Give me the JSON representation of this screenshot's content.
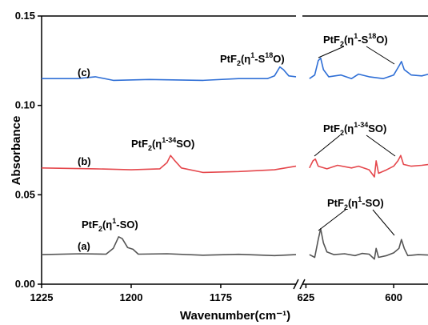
{
  "chart_data": {
    "type": "line",
    "xlabel": "Wavenumber(cm⁻¹)",
    "ylabel": "Absorbance",
    "x_axis": {
      "broken": true,
      "segments": [
        {
          "range": [
            1225,
            1154
          ],
          "ticks": [
            1225,
            1200,
            1175
          ]
        },
        {
          "range": [
            626,
            590
          ],
          "ticks": [
            625,
            600
          ]
        }
      ]
    },
    "ylim": [
      0.0,
      0.15
    ],
    "y_ticks": [
      "0.00",
      "0.05",
      "0.10",
      "0.15"
    ],
    "grid": false,
    "series": [
      {
        "name": "(a)",
        "color": "#555555",
        "segment1": [
          [
            1225,
            0.0165
          ],
          [
            1214,
            0.017
          ],
          [
            1207,
            0.0168
          ],
          [
            1205,
            0.02
          ],
          [
            1203.5,
            0.0265
          ],
          [
            1202.5,
            0.0255
          ],
          [
            1201,
            0.0205
          ],
          [
            1199.5,
            0.0195
          ],
          [
            1198,
            0.0168
          ],
          [
            1190,
            0.017
          ],
          [
            1180,
            0.0162
          ],
          [
            1170,
            0.0167
          ],
          [
            1160,
            0.016
          ],
          [
            1154,
            0.0165
          ]
        ],
        "segment2": [
          [
            624,
            0.0165
          ],
          [
            622.5,
            0.015
          ],
          [
            621.5,
            0.025
          ],
          [
            620.8,
            0.031
          ],
          [
            620,
            0.023
          ],
          [
            619,
            0.018
          ],
          [
            617,
            0.0165
          ],
          [
            614,
            0.017
          ],
          [
            611,
            0.016
          ],
          [
            609,
            0.0172
          ],
          [
            607,
            0.0168
          ],
          [
            605.5,
            0.014
          ],
          [
            605,
            0.02
          ],
          [
            604.3,
            0.015
          ],
          [
            602,
            0.016
          ],
          [
            600,
            0.0175
          ],
          [
            598.5,
            0.02
          ],
          [
            597.8,
            0.025
          ],
          [
            597,
            0.02
          ],
          [
            596,
            0.016
          ],
          [
            593,
            0.0165
          ],
          [
            590,
            0.0163
          ]
        ]
      },
      {
        "name": "(b)",
        "color": "#e5484d",
        "segment1": [
          [
            1225,
            0.065
          ],
          [
            1210,
            0.0645
          ],
          [
            1200,
            0.064
          ],
          [
            1192,
            0.0645
          ],
          [
            1190,
            0.068
          ],
          [
            1189,
            0.072
          ],
          [
            1188,
            0.0695
          ],
          [
            1186,
            0.065
          ],
          [
            1180,
            0.0625
          ],
          [
            1170,
            0.063
          ],
          [
            1160,
            0.064
          ],
          [
            1154,
            0.066
          ]
        ],
        "segment2": [
          [
            624,
            0.065
          ],
          [
            623,
            0.069
          ],
          [
            622.3,
            0.07
          ],
          [
            621.5,
            0.066
          ],
          [
            619,
            0.0645
          ],
          [
            616,
            0.0665
          ],
          [
            612,
            0.065
          ],
          [
            610,
            0.066
          ],
          [
            607,
            0.064
          ],
          [
            605.5,
            0.06
          ],
          [
            605,
            0.069
          ],
          [
            604.3,
            0.062
          ],
          [
            602,
            0.064
          ],
          [
            600,
            0.066
          ],
          [
            598.8,
            0.069
          ],
          [
            598,
            0.072
          ],
          [
            597.2,
            0.067
          ],
          [
            595,
            0.066
          ],
          [
            592,
            0.0665
          ],
          [
            590,
            0.067
          ]
        ]
      },
      {
        "name": "(c)",
        "color": "#2f6fd6",
        "segment1": [
          [
            1225,
            0.115
          ],
          [
            1215,
            0.115
          ],
          [
            1210,
            0.116
          ],
          [
            1205,
            0.114
          ],
          [
            1195,
            0.1145
          ],
          [
            1180,
            0.114
          ],
          [
            1170,
            0.115
          ],
          [
            1162,
            0.115
          ],
          [
            1160,
            0.1165
          ],
          [
            1158.5,
            0.1215
          ],
          [
            1157.5,
            0.12
          ],
          [
            1156,
            0.1165
          ],
          [
            1154,
            0.116
          ]
        ],
        "segment2": [
          [
            624,
            0.115
          ],
          [
            622.5,
            0.117
          ],
          [
            621.5,
            0.125
          ],
          [
            620.8,
            0.1265
          ],
          [
            620,
            0.12
          ],
          [
            618.5,
            0.116
          ],
          [
            615,
            0.117
          ],
          [
            612,
            0.115
          ],
          [
            610,
            0.1175
          ],
          [
            607,
            0.116
          ],
          [
            605,
            0.1155
          ],
          [
            603,
            0.115
          ],
          [
            600,
            0.117
          ],
          [
            598.5,
            0.122
          ],
          [
            597.8,
            0.1245
          ],
          [
            597,
            0.12
          ],
          [
            595,
            0.117
          ],
          [
            592,
            0.1165
          ],
          [
            590,
            0.1175
          ]
        ]
      }
    ],
    "labels": {
      "a": "(a)",
      "b": "(b)",
      "c": "(c)"
    },
    "annotations": {
      "a_left": [
        "PtF",
        "2",
        "(η",
        "1",
        "-SO)"
      ],
      "a_right": [
        "PtF",
        "2",
        "(η",
        "1",
        "-SO)"
      ],
      "b_left": [
        "PtF",
        "2",
        "(η",
        "1-34",
        "SO)"
      ],
      "b_right": [
        "PtF",
        "2",
        "(η",
        "1-34",
        "SO)"
      ],
      "c_left": [
        "PtF",
        "2",
        "(η",
        "1",
        "-S",
        "18",
        "O)"
      ],
      "c_right": [
        "PtF",
        "2",
        "(η",
        "1",
        "-S",
        "18",
        "O)"
      ]
    }
  }
}
